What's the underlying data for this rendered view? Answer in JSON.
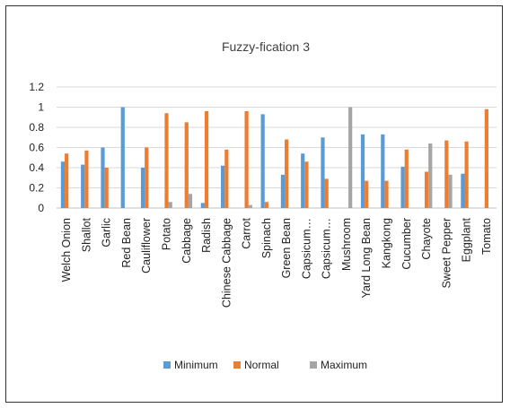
{
  "chart_data": {
    "type": "bar",
    "title": "Fuzzy-fication 3",
    "xlabel": "",
    "ylabel": "",
    "ylim": [
      0,
      1.2
    ],
    "yticks": [
      "0",
      "0.2",
      "0.4",
      "0.6",
      "0.8",
      "1",
      "1.2"
    ],
    "grid": true,
    "legend_position": "bottom",
    "categories": [
      "Welch Onion",
      "Shallot",
      "Garlic",
      "Red Bean",
      "Cauliflower",
      "Potato",
      "Cabbage",
      "Radish",
      "Chinese Cabbage",
      "Carrot",
      "Spinach",
      "Green Bean",
      "Capsicum…",
      "Capsicum…",
      "Mushroom",
      "Yard Long Bean",
      "Kangkong",
      "Cucumber",
      "Chayote",
      "Sweet Pepper",
      "Eggplant",
      "Tomato"
    ],
    "series": [
      {
        "name": "Minimum",
        "color": "#5B9BD5",
        "values": [
          0.46,
          0.43,
          0.6,
          1.0,
          0.4,
          0,
          0,
          0.05,
          0.42,
          0,
          0.93,
          0.33,
          0.54,
          0.7,
          0,
          0.73,
          0.73,
          0.41,
          0,
          0,
          0.34,
          0
        ]
      },
      {
        "name": "Normal",
        "color": "#ED7D31",
        "values": [
          0.54,
          0.57,
          0.4,
          0,
          0.6,
          0.94,
          0.85,
          0.96,
          0.58,
          0.96,
          0.06,
          0.68,
          0.46,
          0.29,
          0,
          0.27,
          0.27,
          0.58,
          0.36,
          0.67,
          0.66,
          0.98
        ]
      },
      {
        "name": "Maximum",
        "color": "#A5A5A5",
        "values": [
          0,
          0,
          0,
          0,
          0,
          0.06,
          0.14,
          0,
          0,
          0.03,
          0,
          0,
          0,
          0,
          1.0,
          0,
          0,
          0,
          0.64,
          0.33,
          0,
          0
        ]
      }
    ]
  }
}
